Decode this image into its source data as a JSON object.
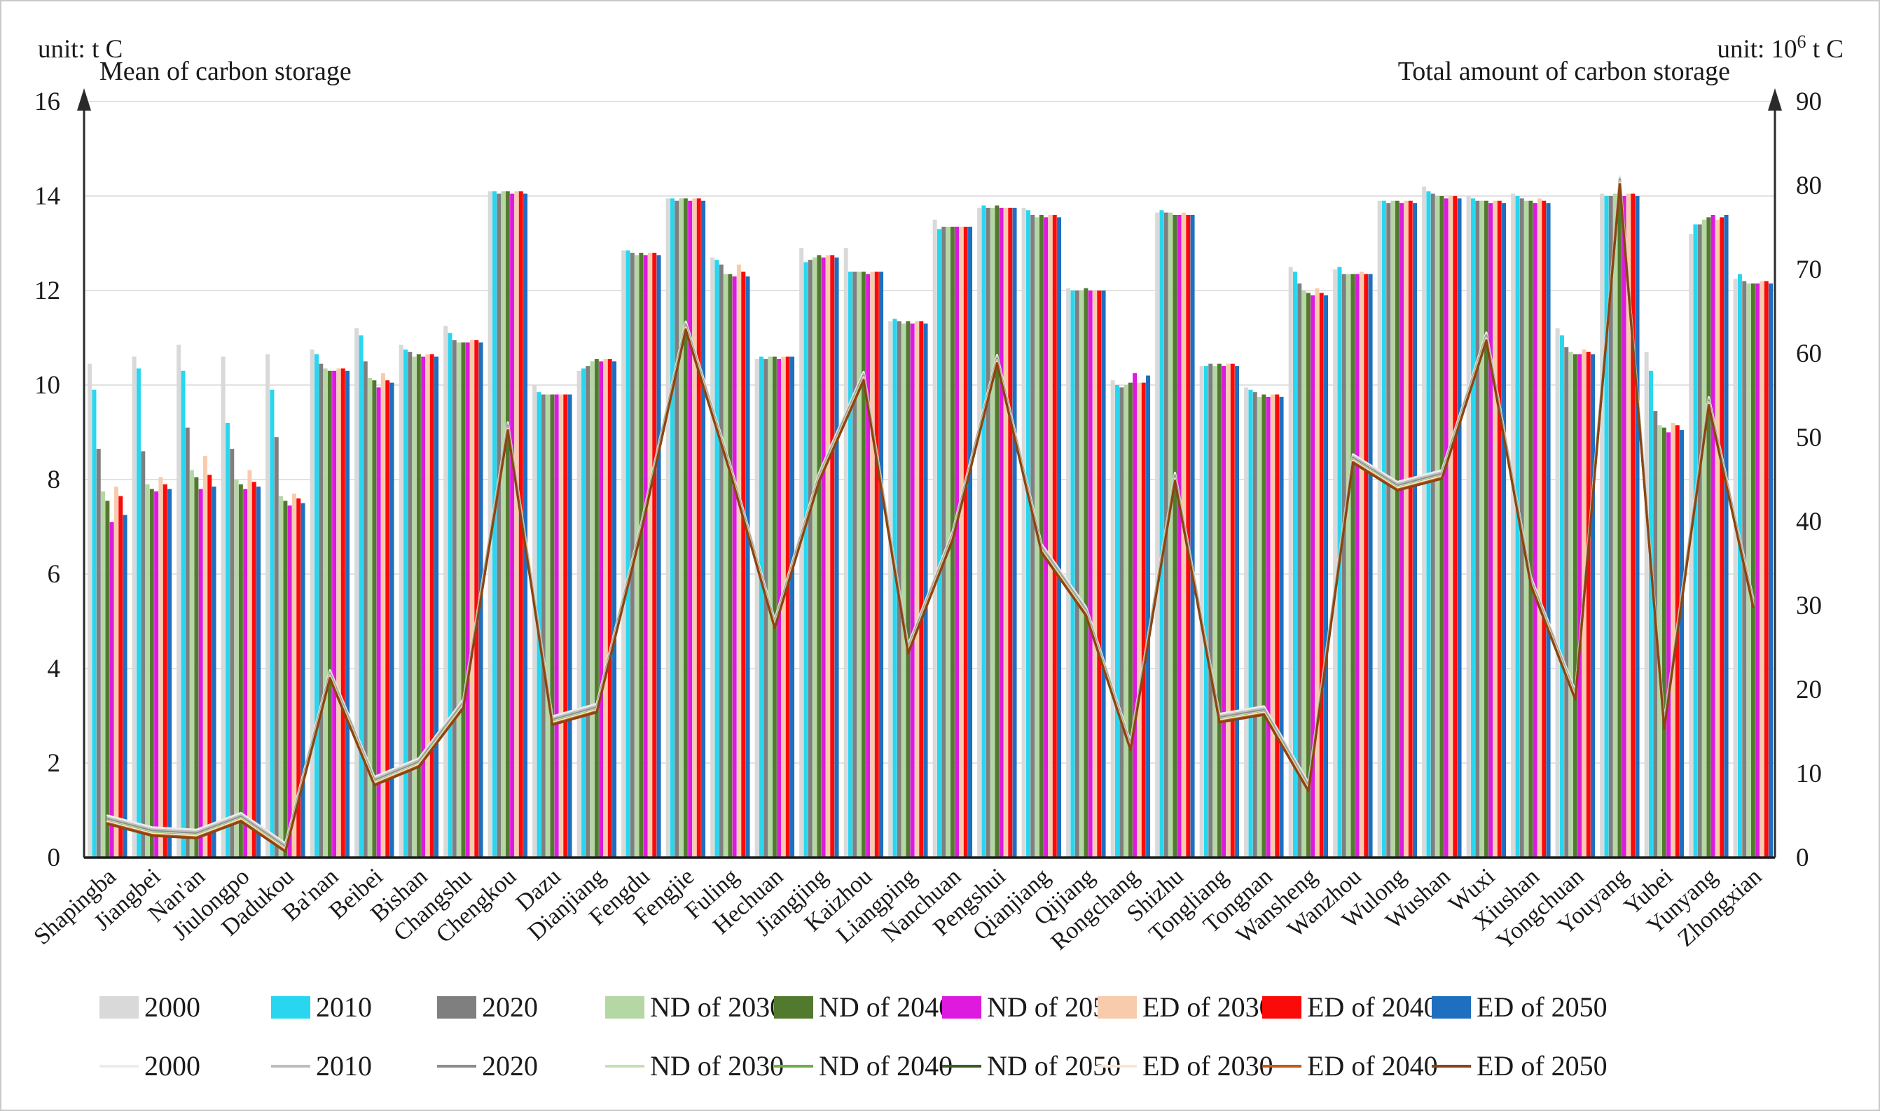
{
  "header": {
    "left_unit": "unit: t C",
    "right_unit_prefix": "unit: 10",
    "right_unit_sup": "6",
    "right_unit_suffix": " t C"
  },
  "chart_data": {
    "type": "bar+line",
    "title": "",
    "categories": [
      "Shapingba",
      "Jiangbei",
      "Nan'an",
      "Jiulongpo",
      "Dadukou",
      "Ba'nan",
      "Beibei",
      "Bishan",
      "Changshu",
      "Chengkou",
      "Dazu",
      "Dianjiang",
      "Fengdu",
      "Fengjie",
      "Fuling",
      "Hechuan",
      "Jiangjing",
      "Kaizhou",
      "Liangping",
      "Nanchuan",
      "Pengshui",
      "Qianjiang",
      "Qijiang",
      "Rongchang",
      "Shizhu",
      "Tongliang",
      "Tongnan",
      "Wansheng",
      "Wanzhou",
      "Wulong",
      "Wushan",
      "Wuxi",
      "Xiushan",
      "Yongchuan",
      "Youyang",
      "Yubei",
      "Yunyang",
      "Zhongxian"
    ],
    "left_axis": {
      "label": "Mean of carbon storage",
      "unit": "t C",
      "min": 0,
      "max": 16,
      "tick_step": 2
    },
    "right_axis": {
      "label": "Total amount of carbon storage",
      "unit": "10^6 t C",
      "min": 0,
      "max": 90,
      "tick_step": 10
    },
    "grid": "horizontal gridlines on",
    "legend_position": "bottom, two rows (bars row, lines row)",
    "bar_series": [
      {
        "name": "2000",
        "color": "#d9d9d9"
      },
      {
        "name": "2010",
        "color": "#29d6f0"
      },
      {
        "name": "2020",
        "color": "#7f7f7f"
      },
      {
        "name": "ND of 2030",
        "color": "#b5d7a4"
      },
      {
        "name": "ND of 2040",
        "color": "#527a2e"
      },
      {
        "name": "ND of 2050",
        "color": "#dd1add"
      },
      {
        "name": "ED of 2030",
        "color": "#f8cbad"
      },
      {
        "name": "ED of 2040",
        "color": "#fb0a0a"
      },
      {
        "name": "ED of 2050",
        "color": "#1e6fc0"
      }
    ],
    "bars_by_category": [
      [
        10.45,
        9.9,
        8.65,
        7.75,
        7.55,
        7.1,
        7.85,
        7.65,
        7.25
      ],
      [
        10.6,
        10.35,
        8.6,
        7.9,
        7.8,
        7.75,
        8.05,
        7.9,
        7.8
      ],
      [
        10.85,
        10.3,
        9.1,
        8.2,
        8.05,
        7.8,
        8.5,
        8.1,
        7.85
      ],
      [
        10.6,
        9.2,
        8.65,
        8.0,
        7.9,
        7.8,
        8.2,
        7.95,
        7.85
      ],
      [
        10.65,
        9.9,
        8.9,
        7.65,
        7.55,
        7.45,
        7.7,
        7.6,
        7.5
      ],
      [
        10.75,
        10.65,
        10.45,
        10.35,
        10.3,
        10.3,
        10.35,
        10.35,
        10.3
      ],
      [
        11.2,
        11.05,
        10.5,
        10.15,
        10.1,
        9.95,
        10.25,
        10.1,
        10.05
      ],
      [
        10.85,
        10.75,
        10.7,
        10.6,
        10.65,
        10.6,
        10.65,
        10.65,
        10.6
      ],
      [
        11.25,
        11.1,
        10.95,
        10.9,
        10.9,
        10.9,
        10.95,
        10.95,
        10.9
      ],
      [
        14.1,
        14.1,
        14.05,
        14.1,
        14.1,
        14.05,
        14.1,
        14.1,
        14.05
      ],
      [
        10.0,
        9.85,
        9.8,
        9.8,
        9.8,
        9.8,
        9.8,
        9.8,
        9.8
      ],
      [
        10.3,
        10.35,
        10.4,
        10.5,
        10.55,
        10.5,
        10.55,
        10.55,
        10.5
      ],
      [
        12.85,
        12.85,
        12.8,
        12.75,
        12.8,
        12.75,
        12.8,
        12.8,
        12.75
      ],
      [
        13.95,
        13.95,
        13.9,
        13.95,
        13.95,
        13.9,
        13.95,
        13.95,
        13.9
      ],
      [
        12.7,
        12.65,
        12.55,
        12.35,
        12.35,
        12.3,
        12.55,
        12.4,
        12.3
      ],
      [
        10.55,
        10.6,
        10.55,
        10.6,
        10.6,
        10.55,
        10.6,
        10.6,
        10.6
      ],
      [
        12.9,
        12.6,
        12.65,
        12.7,
        12.75,
        12.7,
        12.75,
        12.75,
        12.7
      ],
      [
        12.9,
        12.4,
        12.4,
        12.4,
        12.4,
        12.35,
        12.4,
        12.4,
        12.4
      ],
      [
        11.35,
        11.4,
        11.35,
        11.3,
        11.35,
        11.3,
        11.35,
        11.35,
        11.3
      ],
      [
        13.5,
        13.3,
        13.35,
        13.35,
        13.35,
        13.35,
        13.35,
        13.35,
        13.35
      ],
      [
        13.75,
        13.8,
        13.75,
        13.75,
        13.8,
        13.75,
        13.75,
        13.75,
        13.75
      ],
      [
        13.75,
        13.7,
        13.6,
        13.55,
        13.6,
        13.55,
        13.6,
        13.6,
        13.55
      ],
      [
        12.05,
        12.0,
        12.0,
        12.0,
        12.05,
        12.0,
        12.0,
        12.0,
        12.0
      ],
      [
        10.1,
        10.0,
        9.95,
        10.0,
        10.05,
        10.25,
        10.05,
        10.05,
        10.2
      ],
      [
        13.65,
        13.7,
        13.65,
        13.65,
        13.6,
        13.6,
        13.65,
        13.6,
        13.6
      ],
      [
        10.4,
        10.4,
        10.45,
        10.4,
        10.45,
        10.4,
        10.45,
        10.45,
        10.4
      ],
      [
        9.95,
        9.9,
        9.85,
        9.75,
        9.8,
        9.75,
        9.8,
        9.8,
        9.75
      ],
      [
        12.5,
        12.4,
        12.15,
        12.0,
        11.95,
        11.9,
        12.05,
        11.95,
        11.9
      ],
      [
        12.45,
        12.5,
        12.35,
        12.35,
        12.35,
        12.35,
        12.4,
        12.35,
        12.35
      ],
      [
        13.9,
        13.9,
        13.85,
        13.9,
        13.9,
        13.85,
        13.9,
        13.9,
        13.85
      ],
      [
        14.2,
        14.1,
        14.05,
        14.0,
        14.0,
        13.95,
        14.0,
        14.0,
        13.95
      ],
      [
        14.0,
        13.95,
        13.9,
        13.9,
        13.9,
        13.85,
        13.9,
        13.9,
        13.85
      ],
      [
        14.05,
        14.0,
        13.95,
        13.9,
        13.9,
        13.85,
        13.95,
        13.9,
        13.85
      ],
      [
        11.2,
        11.05,
        10.8,
        10.7,
        10.65,
        10.65,
        10.75,
        10.7,
        10.65
      ],
      [
        14.05,
        14.0,
        14.0,
        14.05,
        14.05,
        14.0,
        14.05,
        14.05,
        14.0
      ],
      [
        10.7,
        10.3,
        9.45,
        9.15,
        9.1,
        9.0,
        9.2,
        9.15,
        9.05
      ],
      [
        13.2,
        13.4,
        13.4,
        13.5,
        13.55,
        13.6,
        13.5,
        13.55,
        13.6
      ],
      [
        12.25,
        12.35,
        12.2,
        12.15,
        12.15,
        12.15,
        12.2,
        12.2,
        12.15
      ]
    ],
    "line_series": [
      {
        "name": "2000",
        "color": "#ececec",
        "offset": 0.8
      },
      {
        "name": "2010",
        "color": "#bdbdbd",
        "offset": 0.55
      },
      {
        "name": "2020",
        "color": "#8c8c8c",
        "offset": 0.35
      },
      {
        "name": "ND of 2030",
        "color": "#c6e0b4",
        "offset": 0.2
      },
      {
        "name": "ND of 2040",
        "color": "#6fae47",
        "offset": 0.1
      },
      {
        "name": "ND of 2050",
        "color": "#3a5c22",
        "offset": 0.0
      },
      {
        "name": "ED of 2030",
        "color": "#fbe5d6",
        "offset": 0.05
      },
      {
        "name": "ED of 2040",
        "color": "#c55a11",
        "offset": -0.1
      },
      {
        "name": "ED of 2050",
        "color": "#8a4514",
        "offset": -0.2
      }
    ],
    "line_base_right_axis": [
      4.2,
      2.8,
      2.5,
      4.5,
      0.9,
      21.5,
      8.8,
      11.0,
      18.0,
      51.0,
      16.0,
      17.5,
      39.0,
      63.0,
      46.0,
      27.5,
      45.0,
      57.0,
      24.5,
      38.0,
      59.0,
      36.5,
      29.0,
      13.0,
      45.0,
      16.3,
      17.2,
      8.1,
      47.2,
      43.9,
      45.3,
      61.7,
      32.6,
      19.0,
      80.3,
      15.5,
      54.0,
      30.0
    ]
  }
}
